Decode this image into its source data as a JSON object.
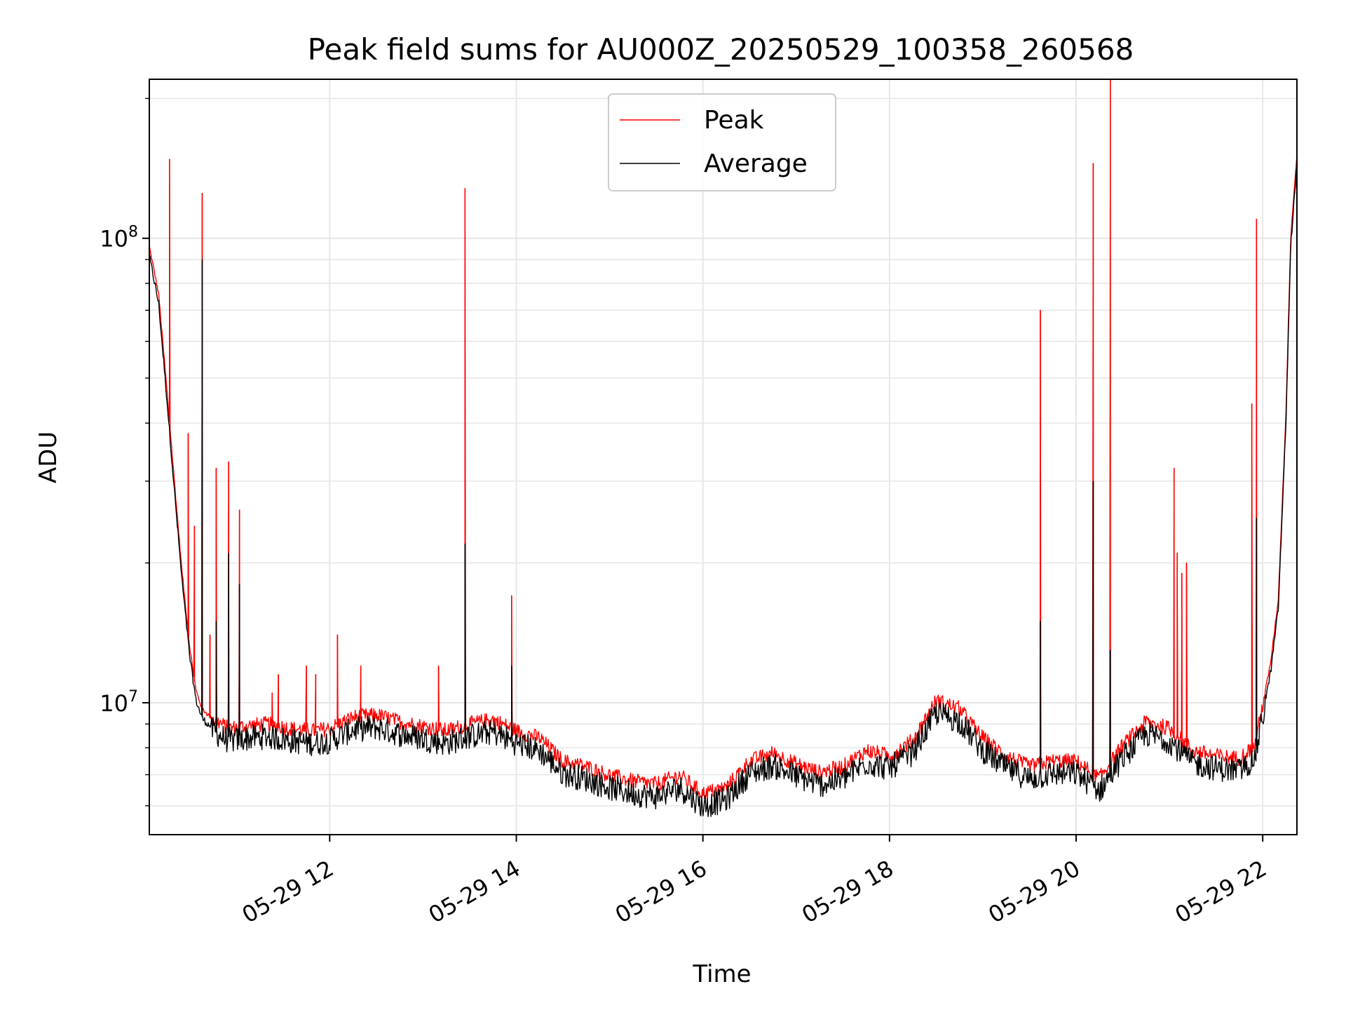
{
  "chart_data": {
    "type": "line",
    "title": "Peak field sums for AU000Z_20250529_100358_260568",
    "xlabel": "Time",
    "ylabel": "ADU",
    "yscale": "log",
    "xlim": [
      "2025-05-29 10:04",
      "2025-05-29 22:22"
    ],
    "ylim": [
      5200000,
      220000000
    ],
    "x_ticks": [
      "2025-05-29 12:00",
      "2025-05-29 14:00",
      "2025-05-29 16:00",
      "2025-05-29 18:00",
      "2025-05-29 20:00",
      "2025-05-29 22:00"
    ],
    "x_tick_labels": [
      "05-29 12",
      "05-29 14",
      "05-29 16",
      "05-29 18",
      "05-29 20",
      "05-29 22"
    ],
    "y_ticks": [
      10000000,
      100000000
    ],
    "y_tick_labels": [
      {
        "base": "10",
        "exp": "7"
      },
      {
        "base": "10",
        "exp": "8"
      }
    ],
    "grid": true,
    "legend_position": "upper-center",
    "series": [
      {
        "name": "Peak",
        "color": "#ff0000",
        "baseline": {
          "x": [
            "2025-05-29 10:04",
            "2025-05-29 10:10",
            "2025-05-29 10:15",
            "2025-05-29 10:20",
            "2025-05-29 10:25",
            "2025-05-29 10:30",
            "2025-05-29 10:34",
            "2025-05-29 10:38",
            "2025-05-29 10:42",
            "2025-05-29 10:48",
            "2025-05-29 10:55",
            "2025-05-29 11:05",
            "2025-05-29 11:20",
            "2025-05-29 11:35",
            "2025-05-29 11:50",
            "2025-05-29 12:00",
            "2025-05-29 12:15",
            "2025-05-29 12:30",
            "2025-05-29 12:45",
            "2025-05-29 13:00",
            "2025-05-29 13:15",
            "2025-05-29 13:30",
            "2025-05-29 13:45",
            "2025-05-29 14:00",
            "2025-05-29 14:15",
            "2025-05-29 14:30",
            "2025-05-29 14:45",
            "2025-05-29 15:00",
            "2025-05-29 15:15",
            "2025-05-29 15:30",
            "2025-05-29 15:45",
            "2025-05-29 16:00",
            "2025-05-29 16:15",
            "2025-05-29 16:30",
            "2025-05-29 16:45",
            "2025-05-29 17:00",
            "2025-05-29 17:15",
            "2025-05-29 17:30",
            "2025-05-29 17:45",
            "2025-05-29 18:00",
            "2025-05-29 18:15",
            "2025-05-29 18:30",
            "2025-05-29 18:45",
            "2025-05-29 19:00",
            "2025-05-29 19:15",
            "2025-05-29 19:30",
            "2025-05-29 19:45",
            "2025-05-29 20:00",
            "2025-05-29 20:15",
            "2025-05-29 20:30",
            "2025-05-29 20:45",
            "2025-05-29 21:00",
            "2025-05-29 21:15",
            "2025-05-29 21:30",
            "2025-05-29 21:45",
            "2025-05-29 21:55",
            "2025-05-29 22:00",
            "2025-05-29 22:05",
            "2025-05-29 22:10",
            "2025-05-29 22:15",
            "2025-05-29 22:18",
            "2025-05-29 22:22"
          ],
          "y": [
            95000000,
            75000000,
            48000000,
            30000000,
            19000000,
            13000000,
            10500000,
            9600000,
            9300000,
            9000000,
            8700000,
            8800000,
            8900000,
            8700000,
            8600000,
            8700000,
            9200000,
            9300000,
            9000000,
            8800000,
            8600000,
            8900000,
            9100000,
            8600000,
            8300000,
            7400000,
            7200000,
            6900000,
            6700000,
            6600000,
            6900000,
            6300000,
            6500000,
            7400000,
            7700000,
            7300000,
            7000000,
            7200000,
            7800000,
            7600000,
            8200000,
            10000000,
            9600000,
            8300000,
            7600000,
            7200000,
            7400000,
            7400000,
            6800000,
            8000000,
            9000000,
            8700000,
            7800000,
            7600000,
            7500000,
            8000000,
            9800000,
            12000000,
            16500000,
            42000000,
            100000000,
            150000000
          ]
        },
        "spikes": [
          {
            "x": "2025-05-29 10:17",
            "y": 148000000
          },
          {
            "x": "2025-05-29 10:29",
            "y": 38000000
          },
          {
            "x": "2025-05-29 10:33",
            "y": 24000000
          },
          {
            "x": "2025-05-29 10:38",
            "y": 125000000
          },
          {
            "x": "2025-05-29 10:43",
            "y": 14000000
          },
          {
            "x": "2025-05-29 10:47",
            "y": 32000000
          },
          {
            "x": "2025-05-29 10:55",
            "y": 33000000
          },
          {
            "x": "2025-05-29 11:02",
            "y": 26000000
          },
          {
            "x": "2025-05-29 11:23",
            "y": 10500000
          },
          {
            "x": "2025-05-29 11:27",
            "y": 11500000
          },
          {
            "x": "2025-05-29 11:45",
            "y": 12000000
          },
          {
            "x": "2025-05-29 11:51",
            "y": 11500000
          },
          {
            "x": "2025-05-29 12:05",
            "y": 14000000
          },
          {
            "x": "2025-05-29 12:20",
            "y": 12000000
          },
          {
            "x": "2025-05-29 13:10",
            "y": 12000000
          },
          {
            "x": "2025-05-29 13:27",
            "y": 128000000
          },
          {
            "x": "2025-05-29 13:57",
            "y": 17000000
          },
          {
            "x": "2025-05-29 19:37",
            "y": 70000000
          },
          {
            "x": "2025-05-29 20:11",
            "y": 145000000
          },
          {
            "x": "2025-05-29 20:22",
            "y": 220000000
          },
          {
            "x": "2025-05-29 21:03",
            "y": 32000000
          },
          {
            "x": "2025-05-29 21:05",
            "y": 21000000
          },
          {
            "x": "2025-05-29 21:08",
            "y": 19000000
          },
          {
            "x": "2025-05-29 21:11",
            "y": 20000000
          },
          {
            "x": "2025-05-29 21:53",
            "y": 44000000
          },
          {
            "x": "2025-05-29 21:56",
            "y": 110000000
          }
        ]
      },
      {
        "name": "Average",
        "color": "#000000",
        "baseline_ratio": 0.97,
        "spikes": [
          {
            "x": "2025-05-29 10:38",
            "y": 90000000
          },
          {
            "x": "2025-05-29 10:47",
            "y": 15000000
          },
          {
            "x": "2025-05-29 10:55",
            "y": 21000000
          },
          {
            "x": "2025-05-29 11:02",
            "y": 18000000
          },
          {
            "x": "2025-05-29 13:27",
            "y": 22000000
          },
          {
            "x": "2025-05-29 13:57",
            "y": 12000000
          },
          {
            "x": "2025-05-29 19:37",
            "y": 15000000
          },
          {
            "x": "2025-05-29 20:11",
            "y": 30000000
          },
          {
            "x": "2025-05-29 20:22",
            "y": 13000000
          },
          {
            "x": "2025-05-29 21:56",
            "y": 25000000
          }
        ]
      }
    ]
  }
}
